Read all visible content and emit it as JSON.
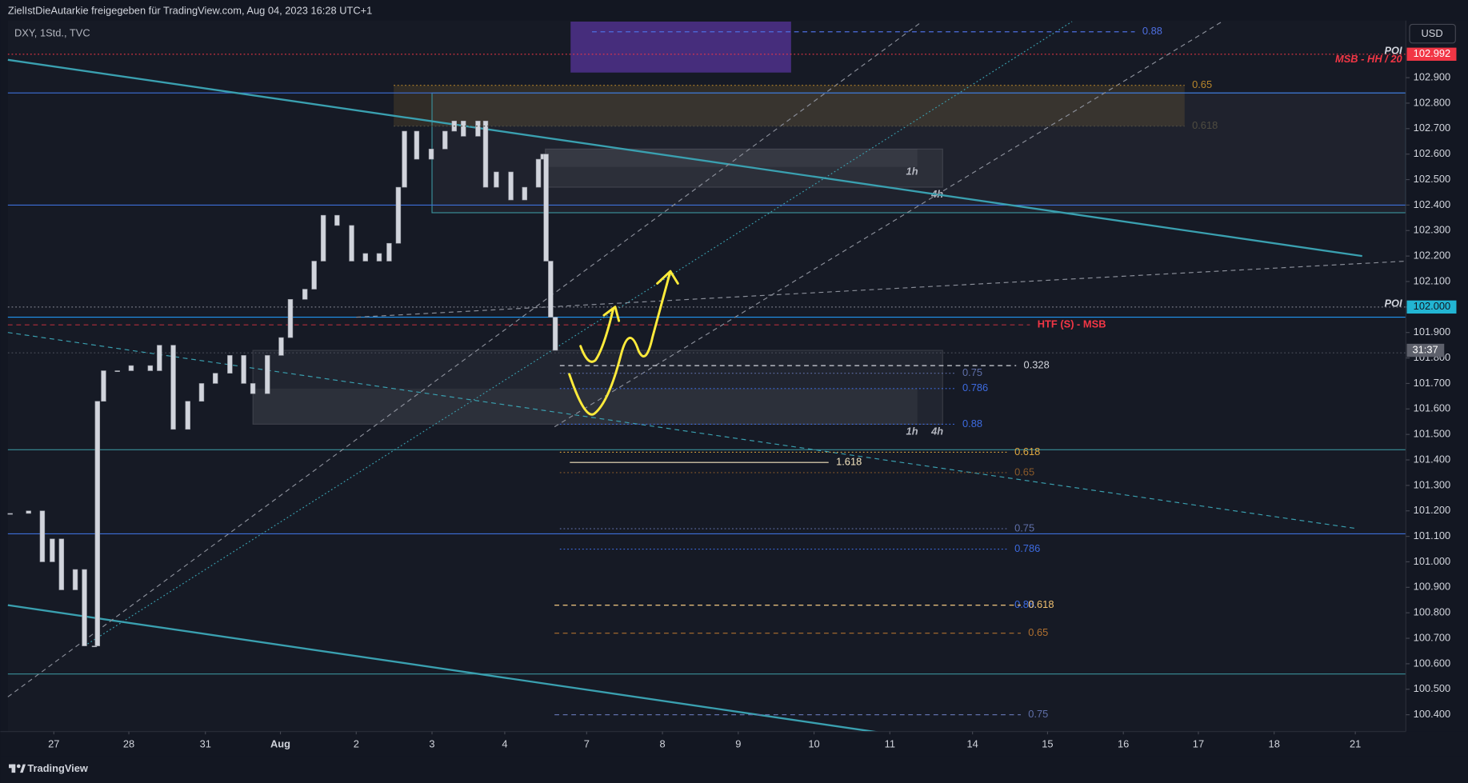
{
  "header": {
    "shared_by": "ZielIstDieAutarkie freigegeben für TradingView.com, Aug 04, 2023 16:28 UTC+1"
  },
  "chart_data": {
    "type": "candlestick",
    "title": "DXY, 1Std., TVC",
    "currency": "USD",
    "countdown": "31:37",
    "x": [
      -0.57,
      -0.33,
      -0.15,
      -0.02,
      0.1,
      0.28,
      0.4,
      0.53,
      0.57,
      0.65,
      0.83,
      1.01,
      1.26,
      1.38,
      1.56,
      1.75,
      1.93,
      2.11,
      2.3,
      2.48,
      2.6,
      2.79,
      2.97,
      3.09,
      3.28,
      3.4,
      3.52,
      3.7,
      3.89,
      4.07,
      4.25,
      4.38,
      4.5,
      4.58,
      4.74,
      4.93,
      5.11,
      5.23,
      5.35,
      5.54,
      5.64,
      5.78,
      5.97,
      6.15,
      6.33,
      6.39,
      6.43,
      6.49,
      6.55
    ],
    "series": [
      {
        "color": "#d1d4dc",
        "values": [
          101.19,
          101.2,
          101.0,
          101.09,
          100.89,
          100.97,
          100.67,
          100.67,
          101.63,
          101.75,
          101.75,
          101.77,
          101.75,
          101.85,
          101.52,
          101.63,
          101.7,
          101.74,
          101.81,
          101.7,
          101.66,
          101.81,
          101.88,
          102.03,
          102.07,
          102.18,
          102.36,
          102.32,
          102.18,
          102.21,
          102.18,
          102.25,
          102.47,
          102.69,
          102.58,
          102.62,
          102.69,
          102.73,
          102.67,
          102.73,
          102.47,
          102.53,
          102.42,
          102.47,
          102.58,
          102.6,
          102.18,
          101.96,
          101.83
        ]
      }
    ],
    "xlim": [
      -0.6,
      17.66
    ],
    "xticks": [
      {
        "value": 0,
        "label": "27"
      },
      {
        "value": 0.98,
        "label": "28"
      },
      {
        "value": 1.98,
        "label": "31"
      },
      {
        "value": 2.96,
        "label": "Aug"
      },
      {
        "value": 3.95,
        "label": "2"
      },
      {
        "value": 4.94,
        "label": "3"
      },
      {
        "value": 5.89,
        "label": "4"
      },
      {
        "value": 6.96,
        "label": "7"
      },
      {
        "value": 7.95,
        "label": "8"
      },
      {
        "value": 8.94,
        "label": "9"
      },
      {
        "value": 9.93,
        "label": "10"
      },
      {
        "value": 10.92,
        "label": "11"
      },
      {
        "value": 12.0,
        "label": "14"
      },
      {
        "value": 12.98,
        "label": "15"
      },
      {
        "value": 13.97,
        "label": "16"
      },
      {
        "value": 14.95,
        "label": "17"
      },
      {
        "value": 15.94,
        "label": "18"
      },
      {
        "value": 17.0,
        "label": "21"
      }
    ],
    "ylim": [
      100.334,
      103.124
    ],
    "yticks": [
      {
        "value": 100.4,
        "label": "100.400"
      },
      {
        "value": 100.5,
        "label": "100.500"
      },
      {
        "value": 100.6,
        "label": "100.600"
      },
      {
        "value": 100.7,
        "label": "100.700"
      },
      {
        "value": 100.8,
        "label": "100.800"
      },
      {
        "value": 100.9,
        "label": "100.900"
      },
      {
        "value": 101.0,
        "label": "101.000"
      },
      {
        "value": 101.1,
        "label": "101.100"
      },
      {
        "value": 101.2,
        "label": "101.200"
      },
      {
        "value": 101.3,
        "label": "101.300"
      },
      {
        "value": 101.4,
        "label": "101.400"
      },
      {
        "value": 101.5,
        "label": "101.500"
      },
      {
        "value": 101.6,
        "label": "101.600"
      },
      {
        "value": 101.7,
        "label": "101.700"
      },
      {
        "value": 101.8,
        "label": "101.800"
      },
      {
        "value": 101.9,
        "label": "101.900"
      },
      {
        "value": 102.0,
        "label": "102.000"
      },
      {
        "value": 102.1,
        "label": "102.100"
      },
      {
        "value": 102.2,
        "label": "102.200"
      },
      {
        "value": 102.3,
        "label": "102.300"
      },
      {
        "value": 102.4,
        "label": "102.400"
      },
      {
        "value": 102.5,
        "label": "102.500"
      },
      {
        "value": 102.6,
        "label": "102.600"
      },
      {
        "value": 102.7,
        "label": "102.700"
      },
      {
        "value": 102.8,
        "label": "102.800"
      },
      {
        "value": 102.9,
        "label": "102.900"
      }
    ],
    "price_labels": [
      {
        "value": 102.992,
        "label": "102.992",
        "color": "#f23645"
      },
      {
        "value": 102,
        "label": "102.000",
        "color": "#22b5d3"
      }
    ],
    "levels": [
      {
        "price": 102.992,
        "color": "#f23645",
        "style": "dotted",
        "labels": [
          "POI",
          "MSB - HH / 20"
        ]
      },
      {
        "price": 102.84,
        "color": "#3d6fd9",
        "style": "solid"
      },
      {
        "price": 102.4,
        "color": "#3d6fd9",
        "style": "solid"
      },
      {
        "price": 102,
        "color": "#787b86",
        "style": "dotted",
        "labels": [
          "POI"
        ]
      },
      {
        "price": 101.96,
        "color": "#2196f3",
        "style": "solid"
      },
      {
        "price": 101.82,
        "color": "#4a4e5a",
        "style": "dotted"
      },
      {
        "price": 101.44,
        "color": "#3a8f99",
        "style": "solid"
      },
      {
        "price": 101.11,
        "color": "#3d6fd9",
        "style": "solid"
      },
      {
        "price": 100.56,
        "color": "#3a8f99",
        "style": "solid"
      }
    ],
    "marker_line": {
      "price": 101.93,
      "x_end": 12.75,
      "color": "#f23645",
      "label": "HTF (S) - MSB"
    },
    "zones": [
      {
        "x": [
          6.75,
          9.63
        ],
        "price": [
          102.92,
          103.12
        ],
        "fill": "rgba(103,58,183,0.6)",
        "stroke": "none"
      },
      {
        "x": [
          4.44,
          14.77
        ],
        "price": [
          102.71,
          102.87
        ],
        "fill": "rgba(120,95,45,0.28)",
        "stroke": "none"
      },
      {
        "x": [
          4.94,
          17.66
        ],
        "price": [
          102.37,
          102.84
        ],
        "fill": "rgba(255,255,255,0.04)",
        "stroke": "#3a8f99"
      },
      {
        "x": [
          6.42,
          11.61
        ],
        "price": [
          102.47,
          102.62
        ],
        "fill": "rgba(255,255,255,0.06)",
        "stroke": "rgba(255,255,255,0.12)"
      },
      {
        "x": [
          6.42,
          11.28
        ],
        "price": [
          102.55,
          102.62
        ],
        "fill": "rgba(255,255,255,0.05)",
        "stroke": "none"
      },
      {
        "x": [
          2.6,
          11.61
        ],
        "price": [
          101.54,
          101.83
        ],
        "fill": "rgba(255,255,255,0.05)",
        "stroke": "rgba(255,255,255,0.12)"
      },
      {
        "x": [
          2.6,
          11.28
        ],
        "price": [
          101.54,
          101.68
        ],
        "fill": "rgba(255,255,255,0.05)",
        "stroke": "none"
      }
    ],
    "zone_labels": [
      {
        "text": "1h",
        "x": 11.21,
        "price": 102.53
      },
      {
        "text": "4h",
        "x": 11.54,
        "price": 102.44
      },
      {
        "text": "1h",
        "x": 11.21,
        "price": 101.51
      },
      {
        "text": "4h",
        "x": 11.54,
        "price": 101.51
      }
    ],
    "trend_lines": [
      {
        "x": [
          -0.6,
          17.09
        ],
        "price": [
          102.97,
          102.2
        ],
        "color": "#3aa0b0",
        "style": "solid",
        "width": 2
      },
      {
        "x": [
          -0.6,
          10.79
        ],
        "price": [
          100.83,
          100.33
        ],
        "color": "#3aa0b0",
        "style": "solid",
        "width": 2
      },
      {
        "x": [
          -0.6,
          17.03
        ],
        "price": [
          101.9,
          101.13
        ],
        "color": "#3aa0b0",
        "style": "dashed",
        "width": 1
      },
      {
        "x": [
          0.4,
          13.3
        ],
        "price": [
          100.67,
          103.12
        ],
        "color": "#3aa0b0",
        "style": "dotted",
        "width": 1
      },
      {
        "x": [
          -0.6,
          11.34
        ],
        "price": [
          100.47,
          103.12
        ],
        "color": "#8a8e99",
        "style": "dashed",
        "width": 1
      },
      {
        "x": [
          6.54,
          15.26
        ],
        "price": [
          101.53,
          103.12
        ],
        "color": "#8a8e99",
        "style": "dashed",
        "width": 1
      },
      {
        "x": [
          3.95,
          17.66
        ],
        "price": [
          101.96,
          102.18
        ],
        "color": "#8a8e99",
        "style": "dashed",
        "width": 1
      }
    ],
    "fib_levels": [
      {
        "label": 0.88,
        "price": 103.08,
        "x": [
          7.03,
          14.12
        ],
        "color": "#4d6ee0",
        "style": "dashed"
      },
      {
        "label": 0.65,
        "price": 102.87,
        "x": [
          4.44,
          14.77
        ],
        "color": "#b8862b",
        "style": "dotted"
      },
      {
        "label": 0.618,
        "price": 102.71,
        "x": [
          4.44,
          14.77
        ],
        "color": "#4f4c40",
        "style": "dotted"
      },
      {
        "label": 0.328,
        "price": 101.77,
        "x": [
          6.61,
          12.57
        ],
        "color": "#d1d4dc",
        "style": "dashed"
      },
      {
        "label": 0.75,
        "price": 101.74,
        "x": [
          6.61,
          11.77
        ],
        "color": "#5f6fa8",
        "style": "dotted"
      },
      {
        "label": 0.786,
        "price": 101.68,
        "x": [
          6.61,
          11.77
        ],
        "color": "#3d6be0",
        "style": "dotted"
      },
      {
        "label": 0.88,
        "price": 101.54,
        "x": [
          6.61,
          11.77
        ],
        "color": "#3d6be0",
        "style": "dotted"
      },
      {
        "label": 0.618,
        "price": 101.43,
        "x": [
          6.61,
          12.45
        ],
        "color": "#e0a840",
        "style": "dotted"
      },
      {
        "label": 1.618,
        "price": 101.39,
        "x": [
          6.74,
          10.12
        ],
        "color": "#f5e6c0",
        "style": "solid"
      },
      {
        "label": 0.65,
        "price": 101.35,
        "x": [
          6.61,
          12.45
        ],
        "color": "#8a5a2a",
        "style": "dotted"
      },
      {
        "label": 0.75,
        "price": 101.13,
        "x": [
          6.61,
          12.45
        ],
        "color": "#5f6fa8",
        "style": "dotted"
      },
      {
        "label": 0.786,
        "price": 101.05,
        "x": [
          6.61,
          12.45
        ],
        "color": "#3d6be0",
        "style": "dotted"
      },
      {
        "label": 0.88,
        "price": 100.83,
        "x": [
          6.54,
          12.45
        ],
        "color": "#3d6be0",
        "style": "dashed"
      },
      {
        "label": 0.618,
        "price": 100.83,
        "x": [
          6.54,
          12.63
        ],
        "color": "#f0c070",
        "style": "dashed"
      },
      {
        "label": 0.65,
        "price": 100.72,
        "x": [
          6.54,
          12.63
        ],
        "color": "#b07030",
        "style": "dashed"
      },
      {
        "label": 0.75,
        "price": 100.4,
        "x": [
          6.54,
          12.63
        ],
        "color": "#5f6fa8",
        "style": "dashed"
      }
    ]
  },
  "footer": {
    "brand": "TradingView"
  }
}
